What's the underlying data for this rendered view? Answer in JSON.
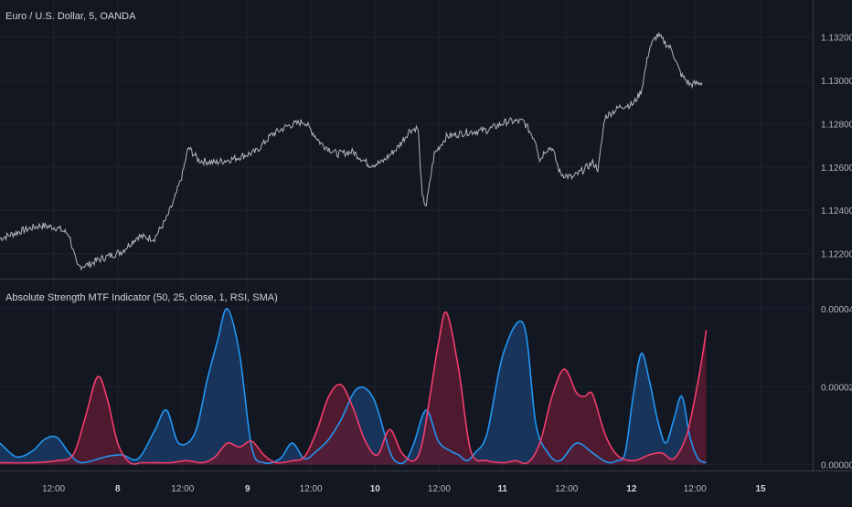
{
  "colors": {
    "background": "#131722",
    "price_line": "#b2b5be",
    "grid": "#1e222d",
    "separator": "#363a45",
    "axis_text": "#b2b5be",
    "bull": "#2196f3",
    "bull_fill": "#1a3a64",
    "bear": "#f23d6d",
    "bear_fill": "#5a1b31"
  },
  "chart_data": [
    {
      "type": "line",
      "title": "Euro / U.S. Dollar, 5, OANDA",
      "y_ticks": [
        "1.13200",
        "1.13000",
        "1.12800",
        "1.12600",
        "1.12400",
        "1.12200"
      ],
      "y_tick_values": [
        1.132,
        1.13,
        1.128,
        1.126,
        1.124,
        1.122
      ],
      "ylim": [
        1.12085,
        1.1337
      ],
      "xlim": [
        0,
        1
      ],
      "grid": true,
      "series": [
        {
          "x": [
            0,
            0.03,
            0.05,
            0.07,
            0.085,
            0.095,
            0.11,
            0.12,
            0.135,
            0.15,
            0.17,
            0.19,
            0.205,
            0.215,
            0.225,
            0.232,
            0.245,
            0.265,
            0.29,
            0.315,
            0.335,
            0.355,
            0.375,
            0.395,
            0.415,
            0.435,
            0.455,
            0.47,
            0.49,
            0.505,
            0.515,
            0.52,
            0.525,
            0.535,
            0.55,
            0.575,
            0.6,
            0.625,
            0.645,
            0.66,
            0.665,
            0.672,
            0.68,
            0.69,
            0.705,
            0.72,
            0.73,
            0.737,
            0.745,
            0.765,
            0.78,
            0.79,
            0.8,
            0.81,
            0.82,
            0.828,
            0.835,
            0.84,
            0.85,
            0.865
          ],
          "y": [
            1.1227,
            1.1231,
            1.1233,
            1.1232,
            1.1229,
            1.1214,
            1.1215,
            1.1217,
            1.1219,
            1.1221,
            1.1228,
            1.1227,
            1.1236,
            1.1245,
            1.1257,
            1.1269,
            1.1263,
            1.1262,
            1.1264,
            1.1267,
            1.1275,
            1.1279,
            1.1281,
            1.1271,
            1.1266,
            1.1267,
            1.1261,
            1.1262,
            1.1269,
            1.1277,
            1.1278,
            1.1246,
            1.1242,
            1.1266,
            1.1274,
            1.1276,
            1.1277,
            1.1281,
            1.1281,
            1.1272,
            1.1263,
            1.1268,
            1.1269,
            1.1257,
            1.1255,
            1.1259,
            1.1262,
            1.1259,
            1.1283,
            1.1288,
            1.1289,
            1.1295,
            1.1315,
            1.1321,
            1.1317,
            1.1314,
            1.1306,
            1.1302,
            1.1298,
            1.1299
          ]
        }
      ]
    },
    {
      "type": "area",
      "title": "Absolute Strength MTF Indicator (50, 25, close, 1, RSI, SMA)",
      "y_ticks": [
        "0.00004",
        "0.00002",
        "0.00000"
      ],
      "y_tick_values": [
        4e-05,
        2e-05,
        0
      ],
      "ylim": [
        -1.5e-06,
        4.75e-05
      ],
      "xlim": [
        0,
        1
      ],
      "grid": true,
      "series": [
        {
          "color": "#2196f3",
          "x": [
            0,
            0.02,
            0.04,
            0.055,
            0.07,
            0.085,
            0.1,
            0.13,
            0.15,
            0.17,
            0.19,
            0.205,
            0.22,
            0.24,
            0.255,
            0.268,
            0.28,
            0.295,
            0.31,
            0.325,
            0.345,
            0.36,
            0.375,
            0.39,
            0.405,
            0.42,
            0.44,
            0.46,
            0.48,
            0.49,
            0.5,
            0.51,
            0.525,
            0.54,
            0.555,
            0.565,
            0.575,
            0.585,
            0.6,
            0.62,
            0.645,
            0.66,
            0.675,
            0.69,
            0.71,
            0.73,
            0.74,
            0.75,
            0.76,
            0.77,
            0.78,
            0.79,
            0.8,
            0.81,
            0.82,
            0.83,
            0.84,
            0.85,
            0.86,
            0.87
          ],
          "y": [
            5.5e-06,
            2e-06,
            3.5e-06,
            6.5e-06,
            7e-06,
            3e-06,
            5e-07,
            2e-06,
            2.5e-06,
            1.5e-06,
            8.5e-06,
            1.4e-05,
            5.5e-06,
            8e-06,
            2.15e-05,
            3.18e-05,
            4e-05,
            2.85e-05,
            4.5e-06,
            5e-07,
            1.5e-06,
            5.5e-06,
            1.5e-06,
            3.5e-06,
            6.5e-06,
            1.15e-05,
            1.95e-05,
            1.7e-05,
            3.5e-06,
            5e-07,
            1e-06,
            5.5e-06,
            1.4e-05,
            6e-06,
            3.5e-06,
            2.5e-06,
            1e-06,
            3e-06,
            8e-06,
            2.85e-05,
            3.6e-05,
            1.05e-05,
            3e-06,
            1e-06,
            5.5e-06,
            3e-06,
            1.5e-06,
            5e-07,
            1e-06,
            3e-06,
            1.75e-05,
            2.85e-05,
            2.15e-05,
            1.15e-05,
            5.5e-06,
            1.15e-05,
            1.75e-05,
            7e-06,
            1.5e-06,
            5e-07
          ]
        },
        {
          "color": "#f23d6d",
          "x": [
            0,
            0.04,
            0.07,
            0.09,
            0.105,
            0.12,
            0.132,
            0.145,
            0.16,
            0.175,
            0.19,
            0.21,
            0.23,
            0.25,
            0.265,
            0.28,
            0.295,
            0.31,
            0.325,
            0.34,
            0.36,
            0.375,
            0.39,
            0.405,
            0.42,
            0.435,
            0.45,
            0.465,
            0.48,
            0.495,
            0.51,
            0.52,
            0.53,
            0.54,
            0.55,
            0.565,
            0.58,
            0.6,
            0.62,
            0.635,
            0.65,
            0.665,
            0.68,
            0.695,
            0.71,
            0.72,
            0.73,
            0.745,
            0.76,
            0.78,
            0.8,
            0.815,
            0.83,
            0.845,
            0.855,
            0.865,
            0.87
          ],
          "y": [
            5e-07,
            5e-07,
            1e-06,
            2.5e-06,
            1.2e-05,
            2.25e-05,
            1.7e-05,
            5.5e-06,
            5e-07,
            5e-07,
            5e-07,
            5e-07,
            1e-06,
            5e-07,
            2e-06,
            5.5e-06,
            4.5e-06,
            6e-06,
            2.5e-06,
            5e-07,
            1e-06,
            2e-06,
            8.5e-06,
            1.75e-05,
            2.05e-05,
            1.45e-05,
            6e-06,
            2.5e-06,
            9e-06,
            3e-06,
            1e-06,
            5.5e-06,
            1.8e-05,
            3.1e-05,
            3.9e-05,
            2.45e-05,
            3.5e-06,
            1e-06,
            5e-07,
            1e-06,
            5e-07,
            5.5e-06,
            1.75e-05,
            2.45e-05,
            1.85e-05,
            1.75e-05,
            1.8e-05,
            8e-06,
            2.5e-06,
            1e-06,
            2.5e-06,
            3e-06,
            1.5e-06,
            7e-06,
            1.6e-05,
            2.75e-05,
            3.45e-05
          ]
        }
      ]
    }
  ],
  "x_axis": {
    "ticks": [
      {
        "label": "12:00",
        "x": 0.066,
        "bold": false
      },
      {
        "label": "8",
        "x": 0.145,
        "bold": true
      },
      {
        "label": "12:00",
        "x": 0.225,
        "bold": false
      },
      {
        "label": "9",
        "x": 0.305,
        "bold": true
      },
      {
        "label": "12:00",
        "x": 0.383,
        "bold": false
      },
      {
        "label": "10",
        "x": 0.462,
        "bold": true
      },
      {
        "label": "12:00",
        "x": 0.541,
        "bold": false
      },
      {
        "label": "11",
        "x": 0.619,
        "bold": true
      },
      {
        "label": "12:00",
        "x": 0.698,
        "bold": false
      },
      {
        "label": "12",
        "x": 0.778,
        "bold": true
      },
      {
        "label": "12:00",
        "x": 0.856,
        "bold": false
      },
      {
        "label": "15",
        "x": 0.937,
        "bold": true
      }
    ]
  }
}
